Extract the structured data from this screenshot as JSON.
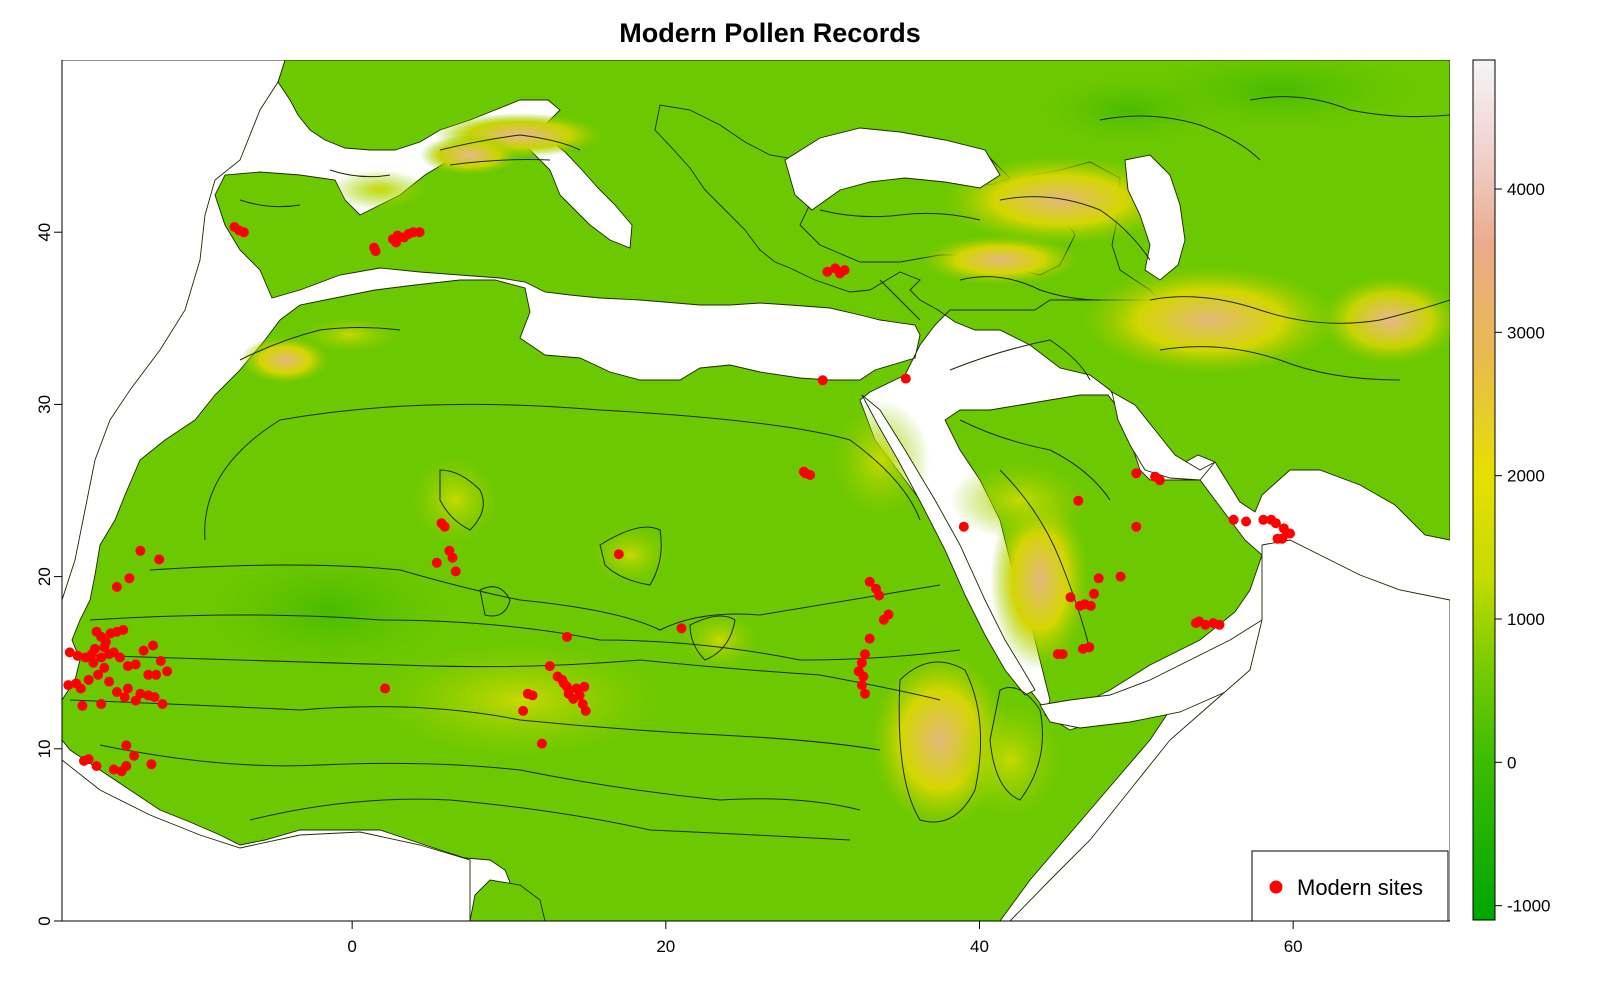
{
  "title": "Modern Pollen Records",
  "map": {
    "lon_range": [
      -18.5,
      70
    ],
    "lat_range": [
      0,
      50
    ],
    "x_ticks": [
      0,
      20,
      40,
      60
    ],
    "y_ticks": [
      0,
      10,
      20,
      30,
      40
    ],
    "land_low_color": "#4cbe00",
    "land_mid_color": "#a0d400",
    "land_high_color": "#e2b87a",
    "sea_color": "#ffffff"
  },
  "legend": {
    "label": "Modern sites",
    "marker_color": "#ff0000",
    "position": "bottom-right"
  },
  "colorbar": {
    "ticks": [
      4000,
      3000,
      2000,
      1000,
      0,
      -1000
    ],
    "range": [
      -1100,
      4900
    ],
    "stops": [
      {
        "value": -1100,
        "color": "#00a600"
      },
      {
        "value": 0,
        "color": "#3cbc00"
      },
      {
        "value": 700,
        "color": "#7ccc00"
      },
      {
        "value": 1300,
        "color": "#c6dc00"
      },
      {
        "value": 2000,
        "color": "#e6e000"
      },
      {
        "value": 2800,
        "color": "#e8bc4c"
      },
      {
        "value": 3600,
        "color": "#ebaa8a"
      },
      {
        "value": 4300,
        "color": "#f0d4d2"
      },
      {
        "value": 4900,
        "color": "#f5f5f5"
      }
    ]
  },
  "sites": [
    [
      -7.5,
      40.3
    ],
    [
      -7.2,
      40.1
    ],
    [
      -6.9,
      40.0
    ],
    [
      1.5,
      38.9
    ],
    [
      1.4,
      39.1
    ],
    [
      2.6,
      39.6
    ],
    [
      2.9,
      39.8
    ],
    [
      3.3,
      39.7
    ],
    [
      3.6,
      39.9
    ],
    [
      3.9,
      40.0
    ],
    [
      2.8,
      39.4
    ],
    [
      4.3,
      40.0
    ],
    [
      30.3,
      37.7
    ],
    [
      30.8,
      37.9
    ],
    [
      31.1,
      37.6
    ],
    [
      31.4,
      37.8
    ],
    [
      30.0,
      31.4
    ],
    [
      35.3,
      31.5
    ],
    [
      28.9,
      26.0
    ],
    [
      29.2,
      25.9
    ],
    [
      28.8,
      26.1
    ],
    [
      5.7,
      23.1
    ],
    [
      5.9,
      22.9
    ],
    [
      6.2,
      21.5
    ],
    [
      6.4,
      21.1
    ],
    [
      5.4,
      20.8
    ],
    [
      6.6,
      20.3
    ],
    [
      17.0,
      21.3
    ],
    [
      21.0,
      17.0
    ],
    [
      13.7,
      16.5
    ],
    [
      39.0,
      22.9
    ],
    [
      46.3,
      24.4
    ],
    [
      50.0,
      26.0
    ],
    [
      51.2,
      25.8
    ],
    [
      51.5,
      25.6
    ],
    [
      50.0,
      22.9
    ],
    [
      56.2,
      23.3
    ],
    [
      57.0,
      23.2
    ],
    [
      58.1,
      23.3
    ],
    [
      58.6,
      23.3
    ],
    [
      58.9,
      23.1
    ],
    [
      59.4,
      22.8
    ],
    [
      59.6,
      22.5
    ],
    [
      59.3,
      22.2
    ],
    [
      59.8,
      22.5
    ],
    [
      59.0,
      22.2
    ],
    [
      47.6,
      19.9
    ],
    [
      49.0,
      20.0
    ],
    [
      47.3,
      19.0
    ],
    [
      46.7,
      18.4
    ],
    [
      47.1,
      18.3
    ],
    [
      45.8,
      18.8
    ],
    [
      46.4,
      18.3
    ],
    [
      45.0,
      15.5
    ],
    [
      45.3,
      15.5
    ],
    [
      46.6,
      15.8
    ],
    [
      47.0,
      15.9
    ],
    [
      54.0,
      17.4
    ],
    [
      54.4,
      17.2
    ],
    [
      54.9,
      17.3
    ],
    [
      55.3,
      17.2
    ],
    [
      53.8,
      17.3
    ],
    [
      33.0,
      19.7
    ],
    [
      33.4,
      19.3
    ],
    [
      33.6,
      18.9
    ],
    [
      33.9,
      17.5
    ],
    [
      34.2,
      17.8
    ],
    [
      33.0,
      16.4
    ],
    [
      32.7,
      15.5
    ],
    [
      32.5,
      15.0
    ],
    [
      32.3,
      14.5
    ],
    [
      32.6,
      14.2
    ],
    [
      32.5,
      13.7
    ],
    [
      32.7,
      13.2
    ],
    [
      2.1,
      13.5
    ],
    [
      11.2,
      13.2
    ],
    [
      11.5,
      13.1
    ],
    [
      10.9,
      12.2
    ],
    [
      12.1,
      10.3
    ],
    [
      12.6,
      14.8
    ],
    [
      13.1,
      14.2
    ],
    [
      13.5,
      13.8
    ],
    [
      13.8,
      13.2
    ],
    [
      14.3,
      13.5
    ],
    [
      14.8,
      13.6
    ],
    [
      14.5,
      13.1
    ],
    [
      14.7,
      12.6
    ],
    [
      14.9,
      12.2
    ],
    [
      13.4,
      14.0
    ],
    [
      13.7,
      13.6
    ],
    [
      14.1,
      12.9
    ],
    [
      -13.5,
      21.5
    ],
    [
      -12.3,
      21.0
    ],
    [
      -15.0,
      19.4
    ],
    [
      -14.2,
      19.9
    ],
    [
      -18.0,
      15.6
    ],
    [
      -17.5,
      15.4
    ],
    [
      -17.0,
      15.3
    ],
    [
      -16.6,
      15.5
    ],
    [
      -16.3,
      16.8
    ],
    [
      -16.0,
      16.5
    ],
    [
      -15.7,
      16.2
    ],
    [
      -15.4,
      16.7
    ],
    [
      -15.0,
      16.8
    ],
    [
      -14.6,
      16.9
    ],
    [
      -16.5,
      15.0
    ],
    [
      -16.0,
      15.3
    ],
    [
      -15.8,
      14.7
    ],
    [
      -15.5,
      15.5
    ],
    [
      -15.2,
      15.6
    ],
    [
      -14.8,
      15.3
    ],
    [
      -14.3,
      14.8
    ],
    [
      -13.8,
      14.9
    ],
    [
      -13.3,
      15.7
    ],
    [
      -12.7,
      16.0
    ],
    [
      -12.2,
      15.1
    ],
    [
      -11.8,
      14.5
    ],
    [
      -12.5,
      14.3
    ],
    [
      -13.0,
      14.3
    ],
    [
      -16.8,
      14.0
    ],
    [
      -16.2,
      14.3
    ],
    [
      -15.5,
      13.9
    ],
    [
      -15.0,
      13.3
    ],
    [
      -14.5,
      13.0
    ],
    [
      -13.5,
      13.2
    ],
    [
      -13.0,
      13.1
    ],
    [
      -12.6,
      13.0
    ],
    [
      -12.1,
      12.6
    ],
    [
      -16.0,
      12.6
    ],
    [
      -17.2,
      12.5
    ],
    [
      -18.1,
      13.7
    ],
    [
      -17.6,
      13.8
    ],
    [
      -17.3,
      13.5
    ],
    [
      -13.8,
      12.8
    ],
    [
      -14.3,
      13.5
    ],
    [
      -16.4,
      15.8
    ],
    [
      -15.8,
      15.9
    ],
    [
      -17.1,
      9.3
    ],
    [
      -16.8,
      9.4
    ],
    [
      -16.3,
      9.0
    ],
    [
      -15.2,
      8.8
    ],
    [
      -14.7,
      8.7
    ],
    [
      -14.4,
      9.0
    ],
    [
      -13.9,
      9.6
    ],
    [
      -14.4,
      10.2
    ],
    [
      -12.8,
      9.1
    ]
  ]
}
